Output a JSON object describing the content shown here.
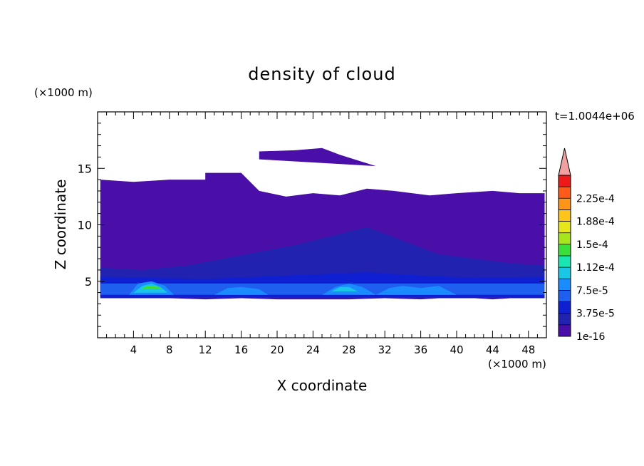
{
  "chart_data": {
    "type": "heatmap",
    "title": "density of cloud",
    "xlabel": "X coordinate",
    "ylabel": "Z coordinate",
    "x_unit": "(×1000 m)",
    "y_unit": "(×1000 m)",
    "time_label": "t=1.0044e+06",
    "xlim": [
      0,
      50
    ],
    "ylim": [
      0,
      20
    ],
    "x_ticks": [
      4,
      8,
      12,
      16,
      20,
      24,
      28,
      32,
      36,
      40,
      44,
      48
    ],
    "y_ticks": [
      5,
      10,
      15
    ],
    "colorbar": {
      "levels": [
        "1e-16",
        "1.88e-5",
        "3.75e-5",
        "5.62e-5",
        "7.5e-5",
        "9.38e-5",
        "1.12e-4",
        "1.31e-4",
        "1.5e-4",
        "1.69e-4",
        "1.88e-4",
        "2.06e-4",
        "2.25e-4",
        "2.44e-4"
      ],
      "tick_labels": [
        "1e-16",
        "3.75e-5",
        "7.5e-5",
        "1.12e-4",
        "1.5e-4",
        "1.88e-4",
        "2.25e-4"
      ],
      "colors": [
        "#4a0fa8",
        "#2222b0",
        "#0f1fd2",
        "#1f5ff0",
        "#1a8cff",
        "#19c6e6",
        "#19e6b0",
        "#3ae03a",
        "#a6e61a",
        "#e6e619",
        "#ffc419",
        "#ff9419",
        "#ff5a19",
        "#f01919"
      ],
      "overflow_color": "#f0a0a0"
    },
    "regions": [
      {
        "level": "1e-16",
        "x": [
          0.3,
          0.3,
          4,
          8,
          12,
          12,
          16,
          18,
          21,
          24,
          27,
          30,
          33,
          37,
          40,
          44,
          47,
          49.8,
          49.8,
          46,
          44,
          40,
          36,
          32,
          28,
          24,
          20,
          16,
          12,
          8,
          4
        ],
        "z": [
          3.5,
          14,
          13.8,
          14,
          14,
          14.6,
          14.6,
          13,
          12.5,
          12.8,
          12.6,
          13.2,
          13,
          12.6,
          12.8,
          13,
          12.8,
          12.8,
          3.5,
          3.5,
          3.4,
          3.6,
          3.4,
          3.5,
          3.4,
          3.4,
          3.4,
          3.5,
          3.4,
          3.5,
          3.5
        ]
      },
      {
        "level": "1e-16",
        "x": [
          18,
          18,
          22,
          25,
          27,
          31
        ],
        "z": [
          15.8,
          16.5,
          16.6,
          16.8,
          16.2,
          15.2
        ]
      },
      {
        "level": "1.88e-5",
        "x": [
          0.3,
          0.3,
          5,
          10,
          14,
          18,
          22,
          26,
          30,
          34,
          38,
          42,
          46,
          49.8,
          49.8
        ],
        "z": [
          3.5,
          6.2,
          6,
          6.4,
          7,
          7.6,
          8.2,
          9,
          9.8,
          8.6,
          7.4,
          7,
          6.6,
          6.4,
          3.5
        ]
      },
      {
        "level": "3.75e-5",
        "x": [
          0.3,
          0.3,
          6,
          12,
          18,
          24,
          30,
          36,
          42,
          49.8,
          49.8
        ],
        "z": [
          3.6,
          5.4,
          5.3,
          5.2,
          5.4,
          5.6,
          5.8,
          5.5,
          5.3,
          5.4,
          3.6
        ]
      },
      {
        "level": "5.62e-5",
        "x": [
          0.3,
          0.3,
          49.8,
          49.8
        ],
        "z": [
          3.8,
          4.8,
          4.8,
          3.8
        ]
      },
      {
        "level": "7.5e-5",
        "x": [
          3.5,
          4.5,
          6,
          7.5,
          8.5
        ],
        "z": [
          3.8,
          4.8,
          5.0,
          4.6,
          3.8
        ]
      },
      {
        "level": "9.38e-5",
        "x": [
          4,
          5,
          6,
          7,
          7.8
        ],
        "z": [
          4.0,
          4.6,
          4.8,
          4.5,
          4.0
        ]
      },
      {
        "level": "1.31e-4",
        "x": [
          4.8,
          5.5,
          6.5,
          7.2
        ],
        "z": [
          4.3,
          4.6,
          4.6,
          4.3
        ]
      },
      {
        "level": "7.5e-5",
        "x": [
          13,
          14.5,
          16,
          18,
          19
        ],
        "z": [
          3.8,
          4.4,
          4.5,
          4.3,
          3.8
        ]
      },
      {
        "level": "7.5e-5",
        "x": [
          25,
          26.5,
          28,
          29.5,
          31
        ],
        "z": [
          3.8,
          4.5,
          4.8,
          4.5,
          3.8
        ]
      },
      {
        "level": "9.38e-5",
        "x": [
          26,
          27,
          28,
          29
        ],
        "z": [
          4.1,
          4.5,
          4.5,
          4.1
        ]
      },
      {
        "level": "7.5e-5",
        "x": [
          31,
          32.5,
          34,
          36,
          38,
          40
        ],
        "z": [
          3.8,
          4.4,
          4.6,
          4.4,
          4.6,
          3.8
        ]
      }
    ]
  }
}
